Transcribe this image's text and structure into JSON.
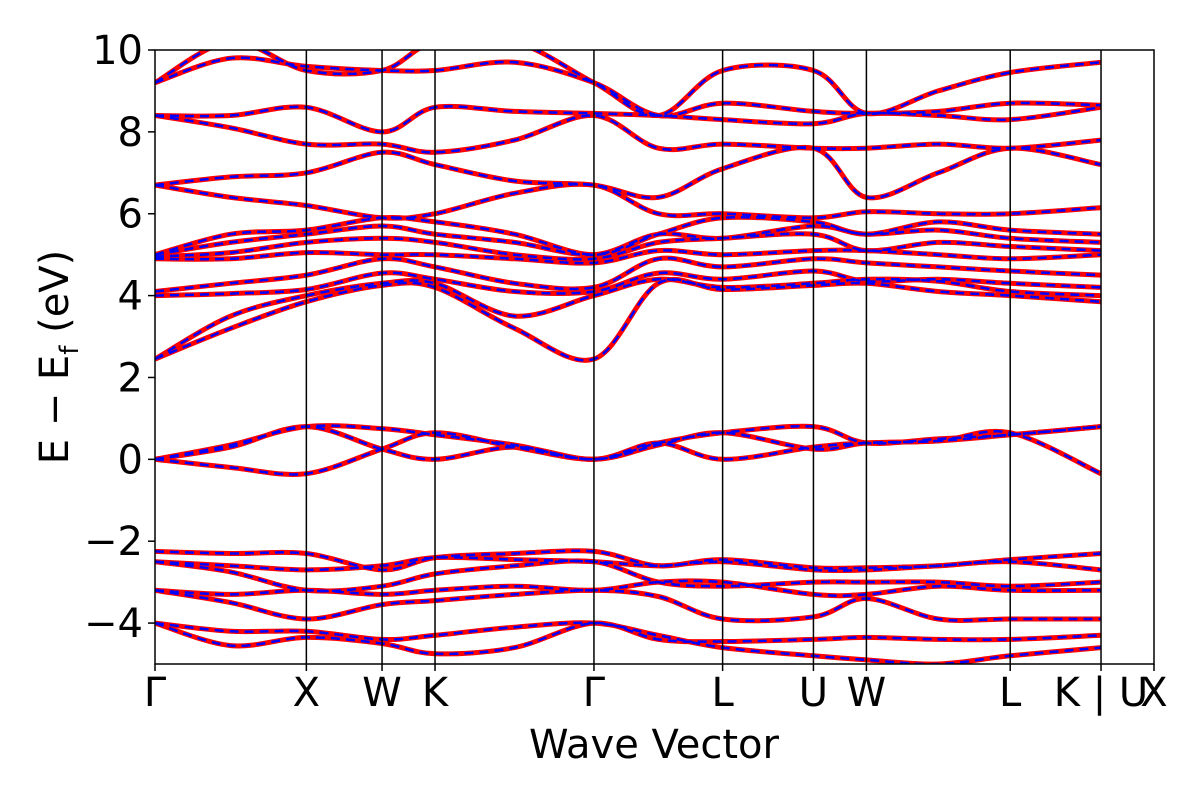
{
  "chart_data": {
    "type": "line",
    "xlabel": "Wave Vector",
    "ylabel": "E − E",
    "ylabel_subscript": "f",
    "ylabel_unit": " (eV)",
    "ylim": [
      -5,
      10
    ],
    "yticks": [
      -4,
      -2,
      0,
      2,
      4,
      6,
      8,
      10
    ],
    "ytick_labels": [
      "−4",
      "−2",
      "0",
      "2",
      "4",
      "6",
      "8",
      "10"
    ],
    "grid": false,
    "legend": "none",
    "kpath_positions": [
      0,
      1.0,
      1.5,
      1.85,
      2.9,
      3.75,
      4.35,
      4.7,
      5.65,
      6.25,
      6.6
    ],
    "kpath_labels": [
      "Γ",
      "X",
      "W",
      "K",
      "Γ",
      "L",
      "U",
      "W",
      "L",
      "K | U",
      "X"
    ],
    "series_styles": [
      {
        "color": "#ff0000",
        "dash": "solid",
        "width": 5
      },
      {
        "color": "#0000ff",
        "dash": "dashed",
        "width": 2.5
      }
    ],
    "bands": [
      [
        -4.0,
        -4.55,
        -4.35,
        -4.5,
        -4.75,
        -4.6,
        -4.0,
        -4.4,
        -4.45,
        -4.4,
        -4.35,
        -4.4,
        -4.4,
        -4.3
      ],
      [
        -4.0,
        -4.2,
        -4.2,
        -4.4,
        -4.3,
        -4.1,
        -4.0,
        -4.3,
        -4.6,
        -4.8,
        -4.9,
        -5.0,
        -4.8,
        -4.6
      ],
      [
        -3.2,
        -3.5,
        -3.9,
        -3.55,
        -3.45,
        -3.3,
        -3.2,
        -3.35,
        -3.9,
        -3.85,
        -3.4,
        -3.9,
        -3.9,
        -3.9
      ],
      [
        -3.2,
        -3.3,
        -3.2,
        -3.3,
        -3.2,
        -3.1,
        -3.2,
        -3.0,
        -3.0,
        -3.3,
        -3.3,
        -3.1,
        -3.2,
        -3.2
      ],
      [
        -2.5,
        -2.75,
        -3.2,
        -3.1,
        -2.8,
        -2.6,
        -2.5,
        -3.0,
        -3.1,
        -3.0,
        -3.0,
        -3.0,
        -3.1,
        -3.0
      ],
      [
        -2.5,
        -2.6,
        -2.7,
        -2.6,
        -2.4,
        -2.45,
        -2.5,
        -2.6,
        -2.5,
        -2.7,
        -2.7,
        -2.6,
        -2.5,
        -2.7
      ],
      [
        -2.25,
        -2.3,
        -2.3,
        -2.7,
        -2.4,
        -2.3,
        -2.25,
        -2.6,
        -2.45,
        -2.65,
        -2.65,
        -2.6,
        -2.45,
        -2.3
      ],
      [
        0.0,
        0.35,
        0.8,
        0.75,
        0.6,
        0.35,
        0.0,
        0.4,
        0.65,
        0.8,
        0.4,
        0.5,
        0.6,
        0.8
      ],
      [
        0.0,
        0.3,
        0.8,
        0.25,
        0.0,
        0.3,
        0.0,
        0.4,
        0.0,
        0.3,
        0.4,
        0.45,
        0.6,
        0.8
      ],
      [
        0.0,
        -0.2,
        -0.35,
        0.25,
        0.65,
        0.3,
        0.0,
        0.35,
        0.65,
        0.25,
        0.4,
        0.45,
        0.65,
        -0.35
      ],
      [
        2.45,
        3.2,
        3.85,
        4.25,
        4.2,
        3.2,
        2.45,
        4.3,
        4.15,
        4.25,
        4.3,
        4.1,
        4.0,
        3.85
      ],
      [
        2.45,
        3.5,
        4.0,
        4.3,
        4.3,
        3.5,
        4.0,
        4.4,
        4.2,
        4.3,
        4.4,
        4.35,
        4.1,
        4.0
      ],
      [
        4.0,
        4.05,
        4.15,
        4.55,
        4.4,
        4.1,
        4.1,
        4.55,
        4.4,
        4.6,
        4.35,
        4.4,
        4.3,
        4.2
      ],
      [
        4.1,
        4.3,
        4.5,
        4.9,
        4.7,
        4.3,
        4.2,
        4.9,
        4.7,
        4.9,
        4.8,
        4.7,
        4.6,
        4.5
      ],
      [
        4.9,
        4.9,
        5.05,
        5.0,
        5.0,
        4.9,
        4.8,
        5.1,
        5.0,
        5.1,
        5.1,
        5.0,
        4.9,
        5.0
      ],
      [
        4.95,
        5.05,
        5.3,
        5.4,
        5.3,
        5.0,
        4.9,
        5.3,
        5.4,
        5.5,
        5.1,
        5.3,
        5.2,
        5.1
      ],
      [
        5.0,
        5.3,
        5.5,
        5.7,
        5.5,
        5.3,
        5.0,
        5.5,
        5.4,
        5.7,
        5.5,
        5.6,
        5.4,
        5.3
      ],
      [
        5.0,
        5.5,
        5.6,
        5.9,
        5.8,
        5.5,
        5.0,
        5.5,
        5.9,
        5.8,
        5.5,
        5.8,
        5.6,
        5.5
      ],
      [
        6.7,
        6.4,
        6.2,
        5.9,
        6.0,
        6.5,
        6.7,
        6.0,
        6.0,
        5.9,
        6.05,
        6.0,
        6.0,
        6.15
      ],
      [
        6.7,
        6.9,
        7.0,
        7.5,
        7.2,
        6.8,
        6.7,
        6.4,
        7.1,
        7.6,
        6.4,
        7.0,
        7.6,
        7.2
      ],
      [
        8.4,
        8.1,
        7.7,
        7.7,
        7.5,
        7.8,
        8.4,
        7.6,
        7.7,
        7.6,
        7.6,
        7.7,
        7.6,
        7.8
      ],
      [
        8.4,
        8.4,
        8.6,
        8.0,
        8.6,
        8.5,
        8.45,
        8.4,
        8.3,
        8.2,
        8.45,
        8.4,
        8.3,
        8.6
      ],
      [
        9.2,
        9.8,
        9.6,
        9.5,
        9.5,
        9.7,
        9.2,
        8.4,
        8.7,
        8.5,
        8.45,
        8.5,
        8.7,
        8.65
      ],
      [
        9.2,
        10.2,
        9.5,
        9.5,
        10.2,
        10.2,
        9.2,
        8.4,
        9.5,
        9.5,
        8.45,
        9.0,
        9.45,
        9.7
      ]
    ]
  }
}
